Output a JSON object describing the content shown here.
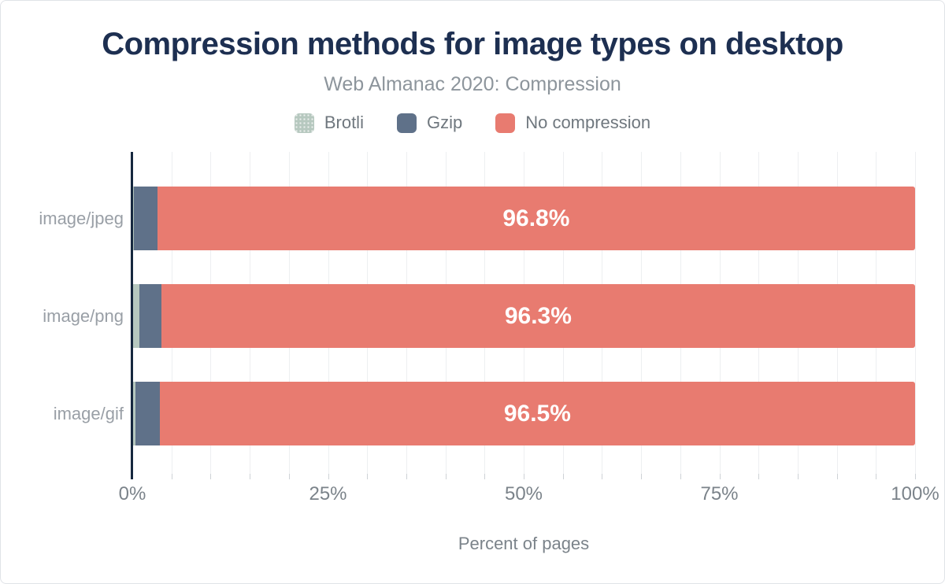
{
  "header": {
    "title": "Compression methods for image types on desktop",
    "subtitle": "Web Almanac 2020: Compression"
  },
  "legend": {
    "items": [
      {
        "label": "Brotli",
        "color": "#b6c8bf",
        "pattern": "dots"
      },
      {
        "label": "Gzip",
        "color": "#5f7189",
        "pattern": "solid"
      },
      {
        "label": "No compression",
        "color": "#e87b70",
        "pattern": "solid"
      }
    ]
  },
  "chart_data": {
    "type": "bar",
    "orientation": "horizontal",
    "stacked": true,
    "title": "Compression methods for image types on desktop",
    "subtitle": "Web Almanac 2020: Compression",
    "categories": [
      "image/jpeg",
      "image/png",
      "image/gif"
    ],
    "series": [
      {
        "name": "Brotli",
        "color": "#b6c8bf",
        "values": [
          0.2,
          0.9,
          0.4
        ]
      },
      {
        "name": "Gzip",
        "color": "#5f7189",
        "values": [
          3.0,
          2.8,
          3.1
        ]
      },
      {
        "name": "No compression",
        "color": "#e87b70",
        "values": [
          96.8,
          96.3,
          96.5
        ]
      }
    ],
    "data_labels": [
      "96.8%",
      "96.3%",
      "96.5%"
    ],
    "xlabel": "Percent of pages",
    "ylabel": "",
    "xlim": [
      0,
      100
    ],
    "x_ticks": [
      {
        "value": 0,
        "label": "0%"
      },
      {
        "value": 25,
        "label": "25%"
      },
      {
        "value": 50,
        "label": "50%"
      },
      {
        "value": 75,
        "label": "75%"
      },
      {
        "value": 100,
        "label": "100%"
      }
    ],
    "minor_grid_step_percent": 5,
    "grid": true,
    "legend_position": "top"
  },
  "colors": {
    "title": "#1d2f51",
    "subtitle": "#8d959c",
    "axis_line": "#16283f",
    "gridline": "#edeff1",
    "label_text": "#999fa6",
    "data_label_text": "#ffffff"
  }
}
